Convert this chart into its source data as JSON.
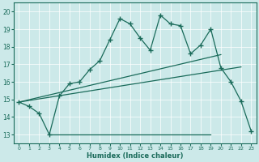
{
  "title": "",
  "xlabel": "Humidex (Indice chaleur)",
  "ylabel": "",
  "bg_color": "#cce9e9",
  "line_color": "#1a6b5a",
  "xlim": [
    -0.5,
    23.5
  ],
  "ylim": [
    12.5,
    20.5
  ],
  "xticks": [
    0,
    1,
    2,
    3,
    4,
    5,
    6,
    7,
    8,
    9,
    10,
    11,
    12,
    13,
    14,
    15,
    16,
    17,
    18,
    19,
    20,
    21,
    22,
    23
  ],
  "yticks": [
    13,
    14,
    15,
    16,
    17,
    18,
    19,
    20
  ],
  "main_x": [
    0,
    1,
    2,
    3,
    4,
    5,
    6,
    7,
    8,
    9,
    10,
    11,
    12,
    13,
    14,
    15,
    16,
    17,
    18,
    19,
    20,
    21,
    22,
    23
  ],
  "main_y": [
    14.85,
    14.6,
    14.2,
    13.0,
    15.2,
    15.9,
    16.0,
    16.7,
    17.2,
    18.4,
    19.6,
    19.3,
    18.5,
    17.8,
    19.8,
    19.3,
    19.2,
    17.6,
    18.1,
    19.0,
    16.8,
    16.0,
    14.9,
    13.2
  ],
  "line1_x": [
    0,
    20
  ],
  "line1_y": [
    14.85,
    17.55
  ],
  "line2_x": [
    0,
    22
  ],
  "line2_y": [
    14.85,
    16.85
  ],
  "line3_x": [
    3,
    19
  ],
  "line3_y": [
    13.0,
    13.0
  ],
  "grid_color": "#ffffff",
  "spine_color": "#1a6b5a"
}
